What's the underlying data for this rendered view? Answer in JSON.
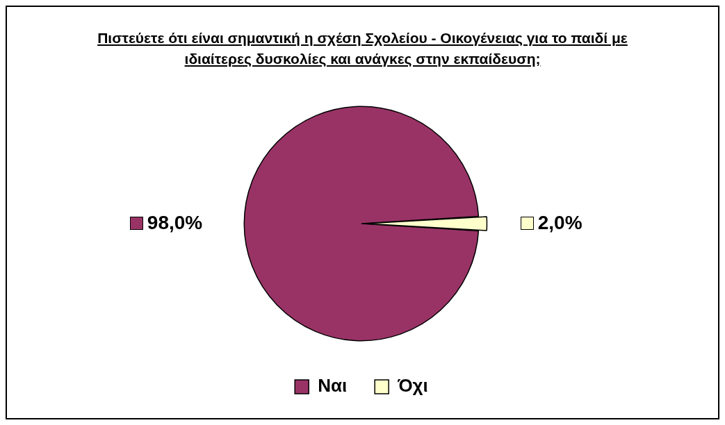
{
  "chart_data": {
    "type": "pie",
    "title": "Πιστεύετε ότι είναι σημαντική η σχέση Σχολείου - Οικογένειας για το παιδί με ιδιαίτερες δυσκολίες και ανάγκες στην εκπαίδευση;",
    "categories": [
      "Ναι",
      "Όχι"
    ],
    "values": [
      98,
      2
    ],
    "colors": [
      "#993366",
      "#ffffcc"
    ],
    "value_labels": [
      "98,0%",
      "2,0%"
    ],
    "legend": "bottom"
  }
}
